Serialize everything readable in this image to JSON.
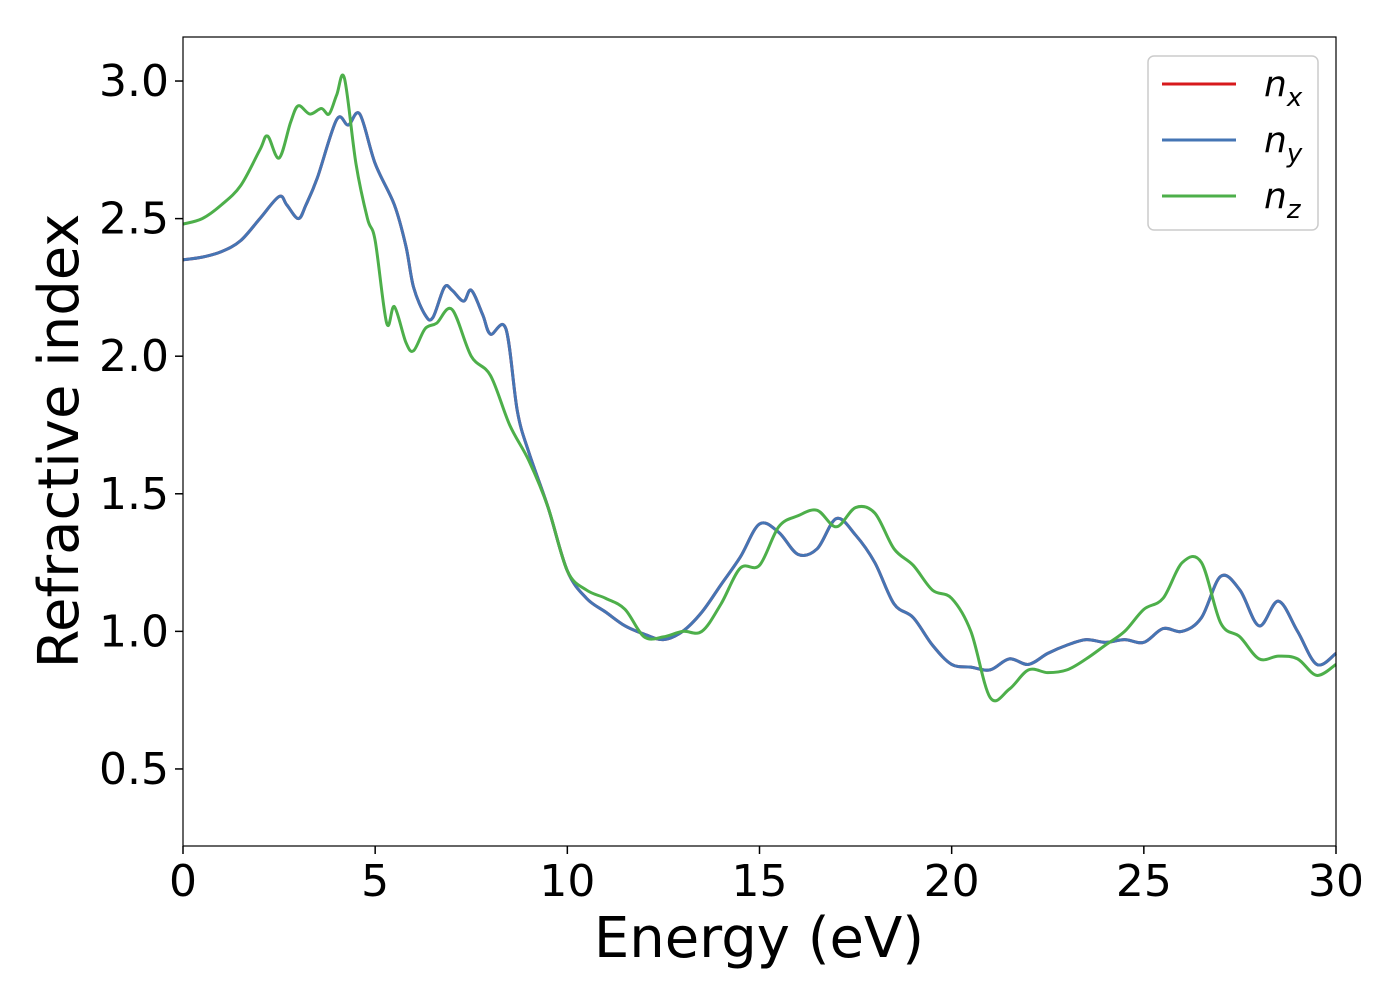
{
  "chart_data": {
    "type": "line",
    "xlabel": "Energy (eV)",
    "ylabel": "Refractive index",
    "xlim": [
      0,
      30
    ],
    "ylim": [
      0.22,
      3.16
    ],
    "xticks": [
      0,
      5,
      10,
      15,
      20,
      25,
      30
    ],
    "yticks": [
      0.5,
      1.0,
      1.5,
      2.0,
      2.5,
      3.0
    ],
    "grid": false,
    "legend": {
      "placement": "top-right",
      "entries": [
        {
          "base": "n",
          "sub": "x",
          "color": "#d7191c"
        },
        {
          "base": "n",
          "sub": "y",
          "color": "#4575b4"
        },
        {
          "base": "n",
          "sub": "z",
          "color": "#4daf4a"
        }
      ]
    },
    "series": [
      {
        "color": "#d7191c",
        "x": [
          0,
          0.5,
          1.0,
          1.5,
          2.0,
          2.5,
          2.7,
          3.0,
          3.2,
          3.5,
          4.0,
          4.3,
          4.6,
          5.0,
          5.5,
          5.8,
          6.0,
          6.3,
          6.5,
          6.8,
          7.0,
          7.3,
          7.5,
          7.8,
          8.0,
          8.4,
          8.7,
          9.0,
          9.5,
          10.0,
          10.5,
          11.0,
          11.5,
          12.0,
          12.5,
          13.0,
          13.5,
          14.0,
          14.5,
          15.0,
          15.5,
          16.0,
          16.5,
          17.0,
          17.5,
          18.0,
          18.5,
          19.0,
          19.5,
          20.0,
          20.5,
          21.0,
          21.5,
          22.0,
          22.5,
          23.0,
          23.5,
          24.0,
          24.5,
          25.0,
          25.5,
          26.0,
          26.5,
          27.0,
          27.5,
          28.0,
          28.5,
          29.0,
          29.5,
          30.0
        ],
        "y": [
          2.35,
          2.36,
          2.38,
          2.42,
          2.5,
          2.58,
          2.55,
          2.5,
          2.55,
          2.65,
          2.86,
          2.84,
          2.88,
          2.7,
          2.55,
          2.4,
          2.25,
          2.15,
          2.14,
          2.25,
          2.24,
          2.2,
          2.24,
          2.15,
          2.08,
          2.1,
          1.8,
          1.65,
          1.45,
          1.22,
          1.12,
          1.07,
          1.02,
          0.99,
          0.97,
          1.0,
          1.07,
          1.17,
          1.27,
          1.39,
          1.36,
          1.28,
          1.3,
          1.41,
          1.35,
          1.25,
          1.1,
          1.05,
          0.95,
          0.88,
          0.87,
          0.86,
          0.9,
          0.88,
          0.92,
          0.95,
          0.97,
          0.96,
          0.97,
          0.96,
          1.01,
          1.0,
          1.05,
          1.2,
          1.15,
          1.02,
          1.11,
          1.0,
          0.88,
          0.92
        ]
      },
      {
        "color": "#4575b4",
        "x": [
          0,
          0.5,
          1.0,
          1.5,
          2.0,
          2.5,
          2.7,
          3.0,
          3.2,
          3.5,
          4.0,
          4.3,
          4.6,
          5.0,
          5.5,
          5.8,
          6.0,
          6.3,
          6.5,
          6.8,
          7.0,
          7.3,
          7.5,
          7.8,
          8.0,
          8.4,
          8.7,
          9.0,
          9.5,
          10.0,
          10.5,
          11.0,
          11.5,
          12.0,
          12.5,
          13.0,
          13.5,
          14.0,
          14.5,
          15.0,
          15.5,
          16.0,
          16.5,
          17.0,
          17.5,
          18.0,
          18.5,
          19.0,
          19.5,
          20.0,
          20.5,
          21.0,
          21.5,
          22.0,
          22.5,
          23.0,
          23.5,
          24.0,
          24.5,
          25.0,
          25.5,
          26.0,
          26.5,
          27.0,
          27.5,
          28.0,
          28.5,
          29.0,
          29.5,
          30.0
        ],
        "y": [
          2.35,
          2.36,
          2.38,
          2.42,
          2.5,
          2.58,
          2.55,
          2.5,
          2.55,
          2.65,
          2.86,
          2.84,
          2.88,
          2.7,
          2.55,
          2.4,
          2.25,
          2.15,
          2.14,
          2.25,
          2.24,
          2.2,
          2.24,
          2.15,
          2.08,
          2.1,
          1.8,
          1.65,
          1.45,
          1.22,
          1.12,
          1.07,
          1.02,
          0.99,
          0.97,
          1.0,
          1.07,
          1.17,
          1.27,
          1.39,
          1.36,
          1.28,
          1.3,
          1.41,
          1.35,
          1.25,
          1.1,
          1.05,
          0.95,
          0.88,
          0.87,
          0.86,
          0.9,
          0.88,
          0.92,
          0.95,
          0.97,
          0.96,
          0.97,
          0.96,
          1.01,
          1.0,
          1.05,
          1.2,
          1.15,
          1.02,
          1.11,
          1.0,
          0.88,
          0.92
        ]
      },
      {
        "color": "#4daf4a",
        "x": [
          0,
          0.5,
          1.0,
          1.5,
          2.0,
          2.2,
          2.5,
          2.8,
          3.0,
          3.3,
          3.6,
          3.8,
          4.0,
          4.2,
          4.5,
          4.8,
          5.0,
          5.3,
          5.5,
          5.8,
          6.0,
          6.3,
          6.6,
          7.0,
          7.5,
          8.0,
          8.5,
          9.0,
          9.5,
          10.0,
          10.5,
          11.0,
          11.5,
          12.0,
          12.5,
          13.0,
          13.5,
          14.0,
          14.5,
          15.0,
          15.5,
          16.0,
          16.5,
          17.0,
          17.5,
          18.0,
          18.5,
          19.0,
          19.5,
          20.0,
          20.5,
          21.0,
          21.5,
          22.0,
          22.5,
          23.0,
          23.5,
          24.0,
          24.5,
          25.0,
          25.5,
          26.0,
          26.5,
          27.0,
          27.5,
          28.0,
          28.5,
          29.0,
          29.5,
          30.0
        ],
        "y": [
          2.48,
          2.5,
          2.55,
          2.62,
          2.75,
          2.8,
          2.72,
          2.85,
          2.91,
          2.88,
          2.9,
          2.88,
          2.95,
          3.01,
          2.7,
          2.5,
          2.42,
          2.12,
          2.18,
          2.05,
          2.02,
          2.1,
          2.12,
          2.17,
          2.0,
          1.93,
          1.75,
          1.62,
          1.45,
          1.22,
          1.15,
          1.12,
          1.08,
          0.98,
          0.98,
          1.0,
          1.0,
          1.1,
          1.23,
          1.24,
          1.38,
          1.42,
          1.44,
          1.38,
          1.45,
          1.43,
          1.3,
          1.24,
          1.15,
          1.12,
          1.0,
          0.76,
          0.79,
          0.86,
          0.85,
          0.86,
          0.9,
          0.95,
          1.0,
          1.08,
          1.12,
          1.25,
          1.25,
          1.03,
          0.98,
          0.9,
          0.91,
          0.9,
          0.84,
          0.88
        ]
      }
    ]
  }
}
